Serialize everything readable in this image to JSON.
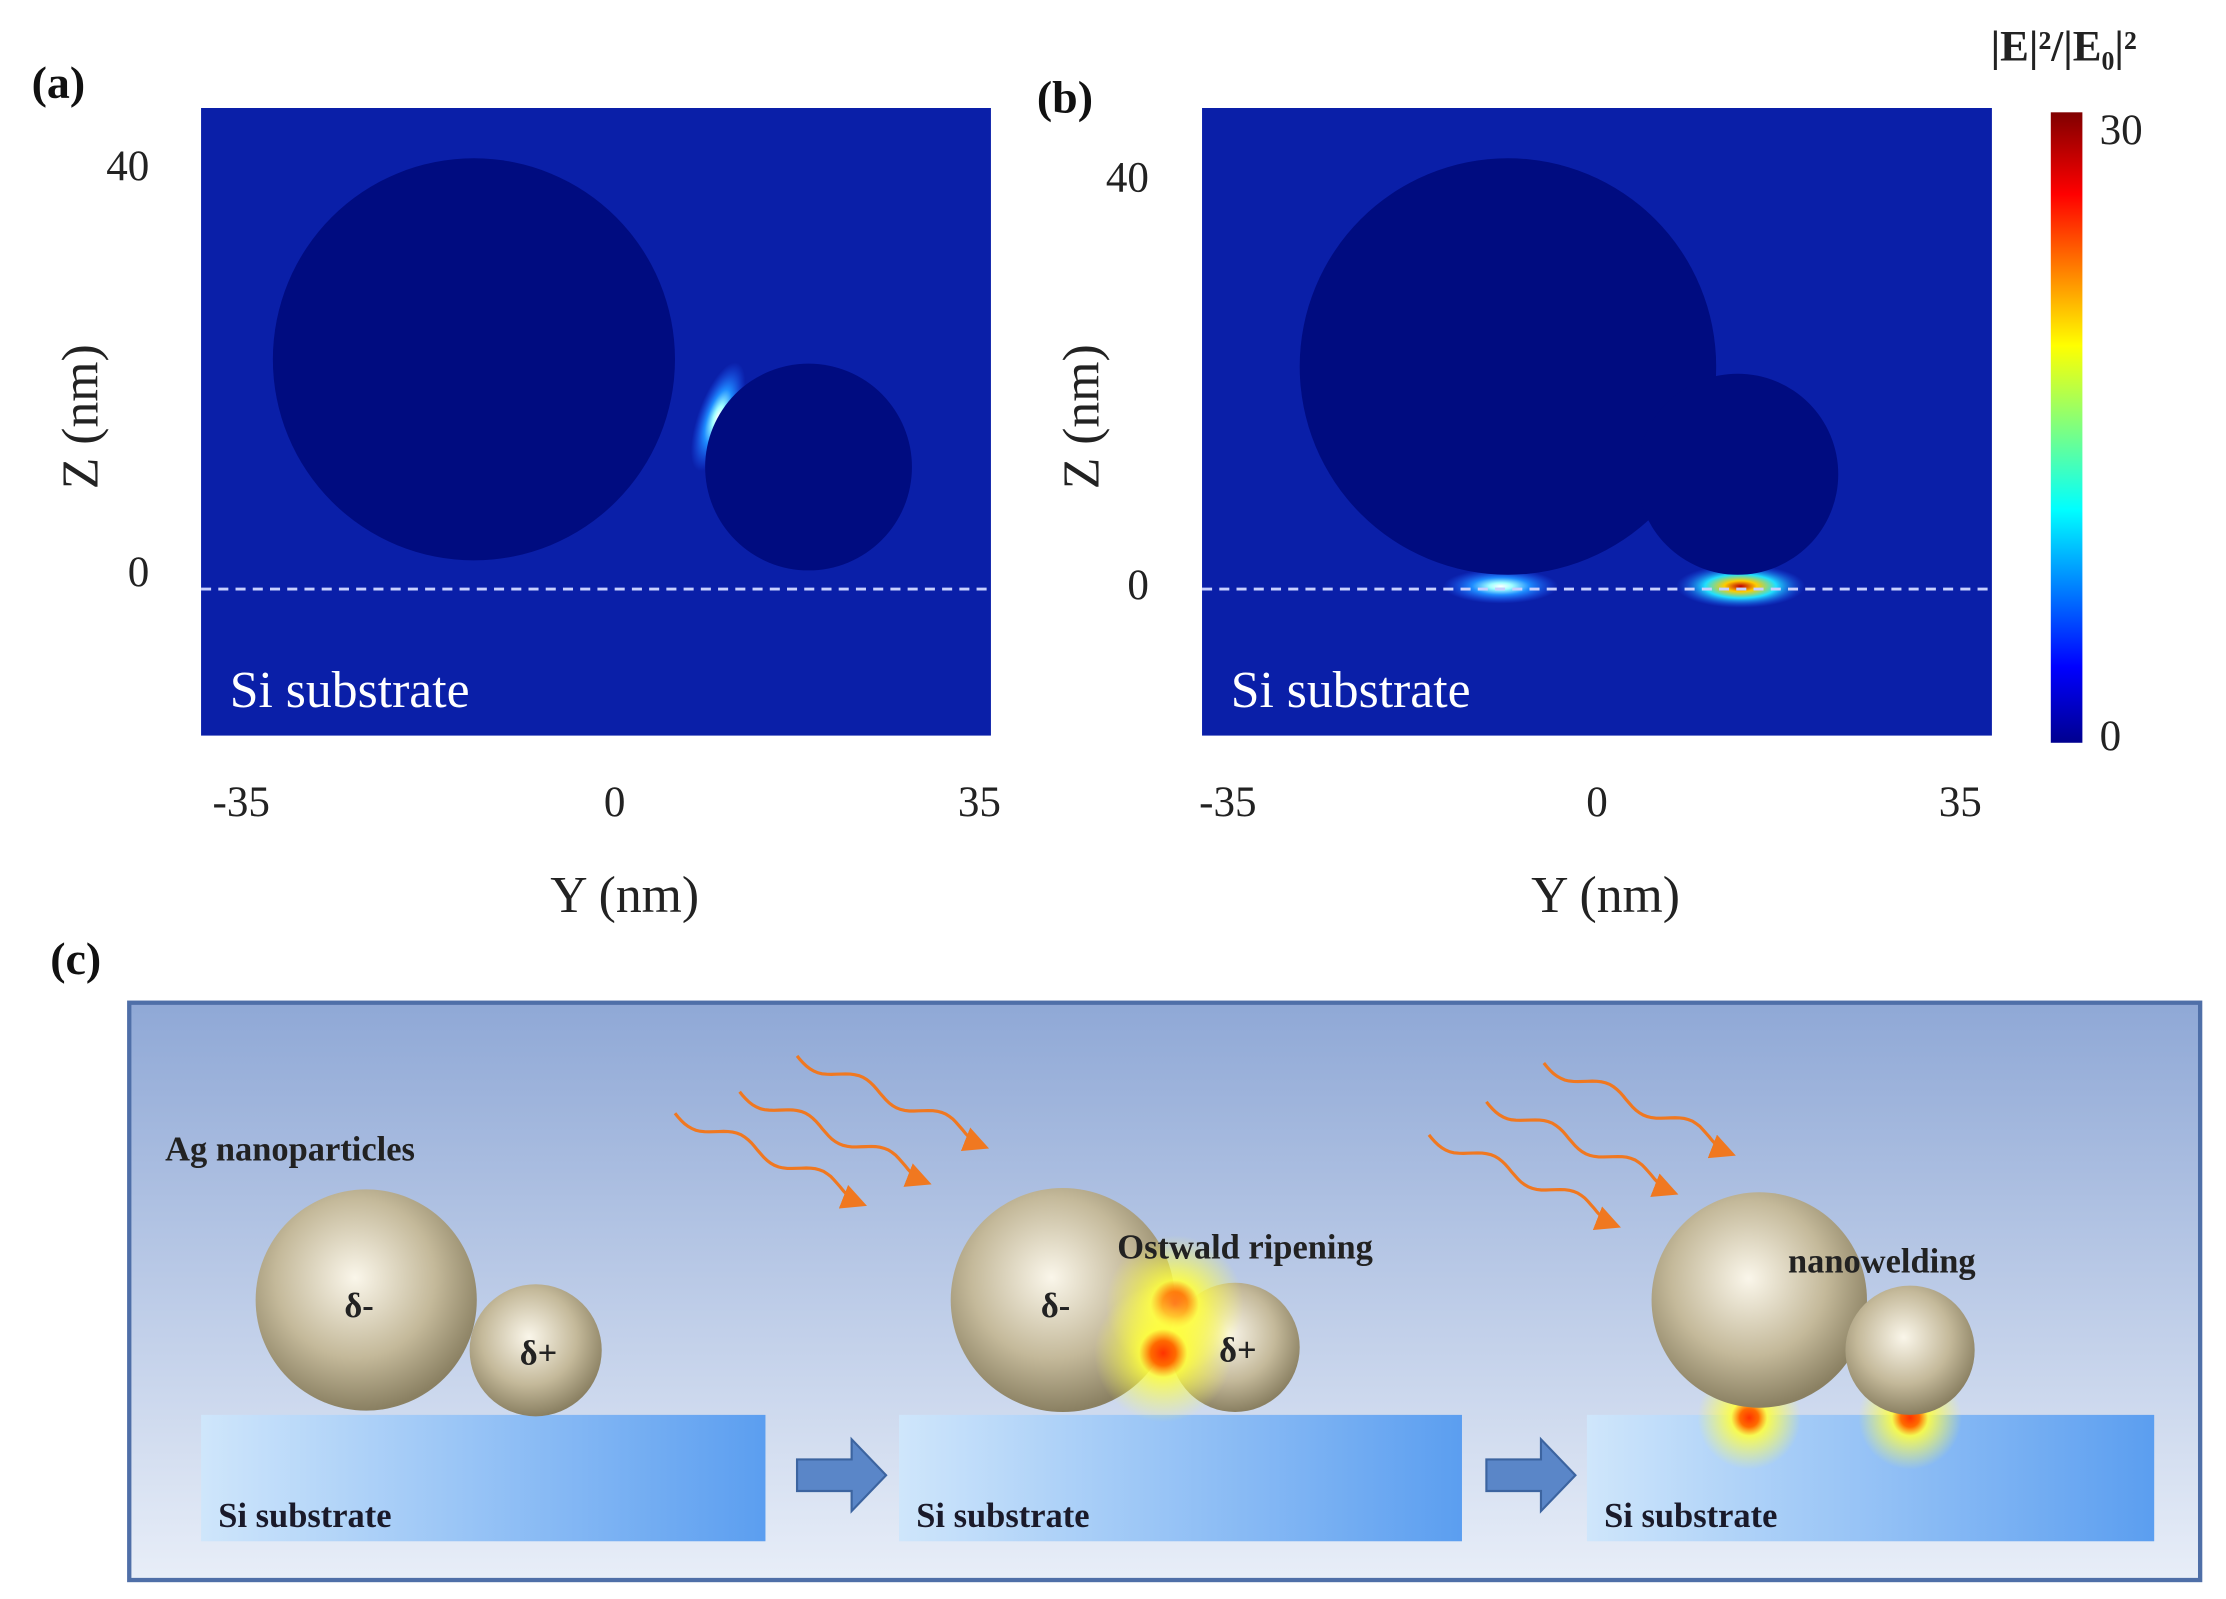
{
  "panels": [
    {
      "label": "(a)",
      "y_axis_label": "Z (nm)",
      "x_axis_label": "Y (nm)",
      "x_ticks": [
        "-35",
        "0",
        "35"
      ],
      "y_ticks": [
        "40",
        "0"
      ],
      "region_label": "Si substrate"
    },
    {
      "label": "(b)",
      "y_axis_label": "Z (nm)",
      "x_axis_label": "Y (nm)",
      "x_ticks": [
        "-35",
        "0",
        "35"
      ],
      "y_ticks": [
        "40",
        "0"
      ],
      "region_label": "Si substrate"
    }
  ],
  "colorbar": {
    "title": "|E|²/|E₀|²",
    "ticks": [
      "30",
      "0"
    ]
  },
  "schematic": {
    "label": "(c)",
    "stages": [
      {
        "title": "Ag nanoparticles",
        "charges": [
          "δ-",
          "δ+"
        ],
        "substrate": "Si substrate"
      },
      {
        "title": "Ostwald ripening",
        "charges": [
          "δ-",
          "δ+"
        ],
        "substrate": "Si substrate"
      },
      {
        "title": "nanowelding",
        "substrate": "Si substrate"
      }
    ]
  }
}
